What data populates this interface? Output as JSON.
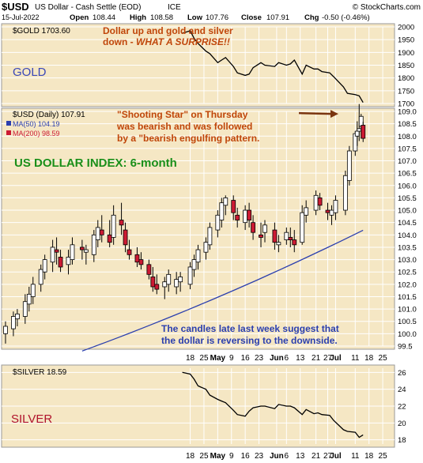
{
  "header": {
    "symbol": "$USD",
    "name": "US Dollar - Cash Settle (EOD)",
    "exchange": "ICE",
    "source": "© StockCharts.com",
    "date": "15-Jul-2022",
    "open_label": "Open",
    "open": "108.44",
    "high_label": "High",
    "high": "108.58",
    "low_label": "Low",
    "low": "107.76",
    "close_label": "Close",
    "close": "107.91",
    "chg_label": "Chg",
    "chg": "-0.50 (-0.46%)"
  },
  "colors": {
    "panel_bg": "#f5e7c4",
    "grid": "#ffffff",
    "price_line": "#000000",
    "up_candle": "#ffffff",
    "down_candle": "#cc1a33",
    "ma50": "#2b3fae",
    "ma200": "#cc1a33",
    "annotation": "#c0460a",
    "label_green": "#1a8f1a",
    "label_blue": "#3a47b8",
    "label_red": "#b0122b",
    "note_blue": "#2b3fae"
  },
  "gold_panel": {
    "legend": "$GOLD 1703.60",
    "label": "GOLD",
    "annotation_line1": "Dollar up and gold and silver",
    "annotation_line2_prefix": "down - ",
    "annotation_line2_emph": "WHAT A SURPRISE!!"
  },
  "usd_panel": {
    "legend_main": "$USD (Daily) 107.91",
    "legend_ma50": "MA(50) 104.19",
    "legend_ma200": "MA(200) 98.59",
    "title": "US DOLLAR INDEX: 6-month",
    "note_top_line1": "\"Shooting Star\" on Thursday",
    "note_top_line2": "was bearish and was followed",
    "note_top_line3": "by a \"bearish engulfing pattern.",
    "note_bottom_line1": "The candles late last week suggest that",
    "note_bottom_line2": "the dollar is reversing to the downside."
  },
  "silver_panel": {
    "legend": "$SILVER 18.59",
    "label": "SILVER"
  },
  "chart_data": [
    {
      "type": "line",
      "series": [
        {
          "name": "$GOLD",
          "x": [
            "2022-04-14",
            "2022-04-18",
            "2022-04-20",
            "2022-04-22",
            "2022-04-26",
            "2022-04-28",
            "2022-05-02",
            "2022-05-04",
            "2022-05-06",
            "2022-05-10",
            "2022-05-12",
            "2022-05-16",
            "2022-05-18",
            "2022-05-20",
            "2022-05-24",
            "2022-05-26",
            "2022-05-31",
            "2022-06-02",
            "2022-06-06",
            "2022-06-08",
            "2022-06-10",
            "2022-06-14",
            "2022-06-16",
            "2022-06-20",
            "2022-06-22",
            "2022-06-24",
            "2022-06-28",
            "2022-06-30",
            "2022-07-05",
            "2022-07-07",
            "2022-07-11",
            "2022-07-13",
            "2022-07-15"
          ],
          "values": [
            1975,
            1985,
            1955,
            1935,
            1905,
            1895,
            1860,
            1870,
            1880,
            1845,
            1820,
            1810,
            1815,
            1840,
            1860,
            1850,
            1845,
            1860,
            1850,
            1855,
            1870,
            1815,
            1850,
            1835,
            1835,
            1825,
            1820,
            1805,
            1765,
            1740,
            1735,
            1730,
            1704
          ]
        }
      ],
      "ylim": [
        1700,
        2000
      ],
      "yticks": [
        1700,
        1750,
        1800,
        1850,
        1900,
        1950,
        2000
      ],
      "grid": true
    },
    {
      "type": "candlestick",
      "x": [
        "2022-01-14",
        "2022-01-18",
        "2022-01-20",
        "2022-01-24",
        "2022-01-26",
        "2022-01-28",
        "2022-02-01",
        "2022-02-03",
        "2022-02-07",
        "2022-02-09",
        "2022-02-11",
        "2022-02-15",
        "2022-02-17",
        "2022-02-22",
        "2022-02-24",
        "2022-02-28",
        "2022-03-02",
        "2022-03-04",
        "2022-03-08",
        "2022-03-10",
        "2022-03-14",
        "2022-03-16",
        "2022-03-18",
        "2022-03-22",
        "2022-03-24",
        "2022-03-28",
        "2022-03-30",
        "2022-04-01",
        "2022-04-05",
        "2022-04-07",
        "2022-04-11",
        "2022-04-13",
        "2022-04-18",
        "2022-04-20",
        "2022-04-22",
        "2022-04-26",
        "2022-04-28",
        "2022-05-02",
        "2022-05-04",
        "2022-05-06",
        "2022-05-10",
        "2022-05-12",
        "2022-05-16",
        "2022-05-18",
        "2022-05-20",
        "2022-05-24",
        "2022-05-26",
        "2022-05-31",
        "2022-06-02",
        "2022-06-06",
        "2022-06-08",
        "2022-06-10",
        "2022-06-14",
        "2022-06-16",
        "2022-06-21",
        "2022-06-23",
        "2022-06-27",
        "2022-06-29",
        "2022-07-01",
        "2022-07-06",
        "2022-07-08",
        "2022-07-11",
        "2022-07-12",
        "2022-07-13",
        "2022-07-14",
        "2022-07-15"
      ],
      "open": [
        100.0,
        100.2,
        100.6,
        100.7,
        101.2,
        101.5,
        102.0,
        102.5,
        102.9,
        103.4,
        103.1,
        102.8,
        103.0,
        103.5,
        103.3,
        103.2,
        103.8,
        104.2,
        104.0,
        103.9,
        104.6,
        104.2,
        103.4,
        103.2,
        103.0,
        102.8,
        102.3,
        102.0,
        101.9,
        102.0,
        101.9,
        102.1,
        102.0,
        102.6,
        102.9,
        103.3,
        103.6,
        104.2,
        104.6,
        105.2,
        105.4,
        104.8,
        104.5,
        105.0,
        104.5,
        104.0,
        104.1,
        104.2,
        103.6,
        103.8,
        103.9,
        103.8,
        103.7,
        104.8,
        105.0,
        105.5,
        105.0,
        104.8,
        104.9,
        105.0,
        106.2,
        107.4,
        108.0,
        108.2,
        108.4,
        108.44
      ],
      "high": [
        100.5,
        100.9,
        101.0,
        101.6,
        101.9,
        102.3,
        102.8,
        103.2,
        103.8,
        103.9,
        103.4,
        103.4,
        103.9,
        103.8,
        103.6,
        104.2,
        104.6,
        104.8,
        104.6,
        105.2,
        105.3,
        104.5,
        103.8,
        103.5,
        103.3,
        103.0,
        102.7,
        102.4,
        102.3,
        102.6,
        102.5,
        102.5,
        102.9,
        103.2,
        103.6,
        103.9,
        104.5,
        105.0,
        105.5,
        105.6,
        105.6,
        105.1,
        105.2,
        105.3,
        104.8,
        104.5,
        104.6,
        104.5,
        104.0,
        104.3,
        104.3,
        104.2,
        105.2,
        105.4,
        105.8,
        105.7,
        105.3,
        105.2,
        105.6,
        106.6,
        107.6,
        108.2,
        108.6,
        109.3,
        108.9,
        108.58
      ],
      "low": [
        99.6,
        99.9,
        100.3,
        100.4,
        100.9,
        101.2,
        101.7,
        102.2,
        102.5,
        102.8,
        102.5,
        102.4,
        102.8,
        103.0,
        102.8,
        102.9,
        103.5,
        103.7,
        103.5,
        103.6,
        104.0,
        103.3,
        103.0,
        102.7,
        102.6,
        102.2,
        101.7,
        101.6,
        101.4,
        101.7,
        101.6,
        101.7,
        101.8,
        102.3,
        102.6,
        103.0,
        103.4,
        103.9,
        104.3,
        104.8,
        104.6,
        104.3,
        104.2,
        104.3,
        103.8,
        103.5,
        103.7,
        103.4,
        103.3,
        103.6,
        103.5,
        103.3,
        103.6,
        104.5,
        104.8,
        105.0,
        104.6,
        104.4,
        104.6,
        104.8,
        106.0,
        107.2,
        107.6,
        107.8,
        107.9,
        107.76
      ],
      "close": [
        100.3,
        100.7,
        100.8,
        101.3,
        101.6,
        102.0,
        102.6,
        103.0,
        103.5,
        103.3,
        102.7,
        103.1,
        103.6,
        103.4,
        103.4,
        104.0,
        104.3,
        104.0,
        103.7,
        104.8,
        104.4,
        103.6,
        103.2,
        102.9,
        102.8,
        102.4,
        101.9,
        101.8,
        102.1,
        102.4,
        102.2,
        102.3,
        102.7,
        103.0,
        103.4,
        103.7,
        104.3,
        104.8,
        105.3,
        105.5,
        104.9,
        104.6,
        105.0,
        104.6,
        104.1,
        103.9,
        104.4,
        103.7,
        103.7,
        104.1,
        103.8,
        103.6,
        104.9,
        105.1,
        105.6,
        105.2,
        104.9,
        105.0,
        105.4,
        106.4,
        107.4,
        108.1,
        108.2,
        108.3,
        108.8,
        107.91
      ],
      "ma50": {
        "start": "2022-02-22",
        "end": "2022-07-15",
        "start_value": 99.3,
        "end_value": 104.19
      },
      "ylim": [
        99.5,
        109.0
      ],
      "yticks": [
        99.5,
        100.0,
        100.5,
        101.0,
        101.5,
        102.0,
        102.5,
        103.0,
        103.5,
        104.0,
        104.5,
        105.0,
        105.5,
        106.0,
        106.5,
        107.0,
        107.5,
        108.0,
        108.5,
        109.0
      ],
      "xtick_labels": [
        "18",
        "25",
        "May",
        "9",
        "16",
        "23",
        "Jun",
        "6",
        "13",
        "21",
        "27",
        "Jul",
        "11",
        "18",
        "25"
      ],
      "grid": true
    },
    {
      "type": "line",
      "series": [
        {
          "name": "$SILVER",
          "x": [
            "2022-04-14",
            "2022-04-18",
            "2022-04-20",
            "2022-04-22",
            "2022-04-26",
            "2022-04-28",
            "2022-05-02",
            "2022-05-04",
            "2022-05-06",
            "2022-05-10",
            "2022-05-12",
            "2022-05-16",
            "2022-05-18",
            "2022-05-20",
            "2022-05-24",
            "2022-05-26",
            "2022-05-31",
            "2022-06-02",
            "2022-06-06",
            "2022-06-08",
            "2022-06-10",
            "2022-06-14",
            "2022-06-16",
            "2022-06-20",
            "2022-06-22",
            "2022-06-24",
            "2022-06-28",
            "2022-06-30",
            "2022-07-05",
            "2022-07-07",
            "2022-07-11",
            "2022-07-13",
            "2022-07-15"
          ],
          "values": [
            26.0,
            25.8,
            25.2,
            24.4,
            24.0,
            23.3,
            22.8,
            22.6,
            22.4,
            21.5,
            21.0,
            20.8,
            21.4,
            21.8,
            22.0,
            22.0,
            21.7,
            22.2,
            22.0,
            22.0,
            21.8,
            21.0,
            21.6,
            21.1,
            21.2,
            21.0,
            20.9,
            20.3,
            19.2,
            19.0,
            18.9,
            18.3,
            18.59
          ]
        }
      ],
      "ylim": [
        17.5,
        26.5
      ],
      "yticks": [
        18,
        20,
        22,
        24,
        26
      ],
      "xtick_labels": [
        "18",
        "25",
        "May",
        "9",
        "16",
        "23",
        "Jun",
        "6",
        "13",
        "21",
        "27",
        "Jul",
        "11",
        "18",
        "25"
      ],
      "grid": true
    }
  ]
}
